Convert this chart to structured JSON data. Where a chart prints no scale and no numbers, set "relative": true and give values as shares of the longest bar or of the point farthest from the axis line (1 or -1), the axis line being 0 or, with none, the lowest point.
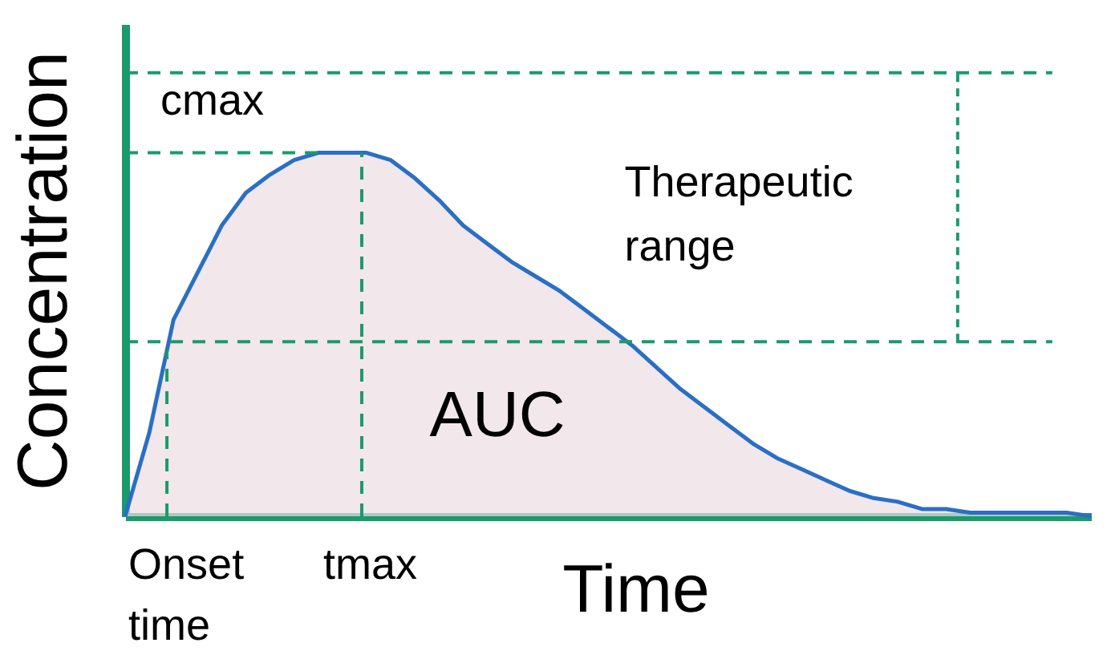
{
  "chart_data": {
    "type": "area",
    "relative": true,
    "xlabel": "Time",
    "ylabel": "Concentration",
    "categories": [
      null,
      null,
      null,
      null,
      null,
      null,
      null,
      null,
      null,
      null,
      null,
      null,
      null,
      null,
      null,
      null,
      null,
      null,
      null,
      null,
      null,
      null,
      null,
      null,
      null,
      null,
      null,
      null,
      null,
      null,
      null,
      null,
      null,
      null,
      null,
      null,
      null,
      null,
      null,
      null,
      null
    ],
    "series": [
      {
        "color": "#2a6fc4",
        "values": [
          0,
          0.23,
          0.54,
          0.67,
          0.8,
          0.89,
          0.94,
          0.98,
          1,
          1,
          1,
          0.98,
          0.93,
          0.87,
          0.8,
          0.75,
          0.7,
          0.66,
          0.62,
          0.57,
          0.52,
          0.47,
          0.41,
          0.35,
          0.3,
          0.25,
          0.2,
          0.16,
          0.13,
          0.1,
          0.07,
          0.05,
          0.04,
          0.02,
          0.02,
          0.01,
          0.01,
          0.01,
          0.01,
          0.01,
          0
        ]
      }
    ],
    "ref_lines": [
      {
        "axis": "y",
        "value": 1,
        "label": "cmax",
        "color": "#1b9a6c",
        "line_style": "dashed"
      },
      {
        "axis": "y",
        "value": 0.48,
        "color": "#1b9a6c",
        "line_style": "dashed"
      },
      {
        "axis": "y",
        "value": 1.22,
        "color": "#1b9a6c",
        "line_style": "dashed"
      }
    ],
    "annotations": [
      "AUC",
      "Onset time",
      "tmax",
      "Therapeutic range"
    ]
  }
}
